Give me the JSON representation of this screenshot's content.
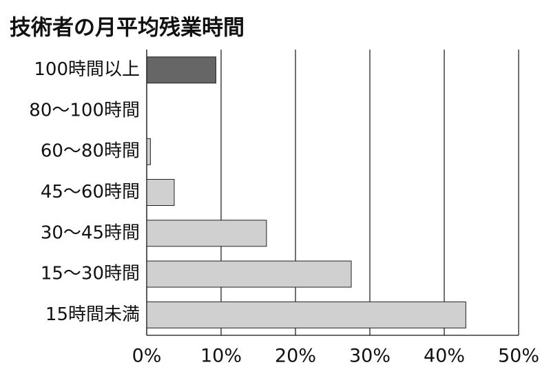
{
  "chart_data": {
    "type": "hbar",
    "title": "技術者の月平均残業時間",
    "categories": [
      "100時間以上",
      "80〜100時間",
      "60〜80時間",
      "45〜60時間",
      "30〜45時間",
      "15〜30時間",
      "15時間未満"
    ],
    "values": [
      9.3,
      0,
      0.5,
      3.7,
      16.1,
      27.5,
      42.9
    ],
    "colors": [
      "#666666",
      "#d0d0d0",
      "#d0d0d0",
      "#d0d0d0",
      "#d0d0d0",
      "#d0d0d0",
      "#d0d0d0"
    ],
    "xlim": [
      0,
      50
    ],
    "xticks": [
      {
        "value": 0,
        "label": "0%"
      },
      {
        "value": 10,
        "label": "10%"
      },
      {
        "value": 20,
        "label": "20%"
      },
      {
        "value": 30,
        "label": "30%"
      },
      {
        "value": 40,
        "label": "40%"
      },
      {
        "value": 50,
        "label": "50%"
      }
    ],
    "grid": true
  }
}
